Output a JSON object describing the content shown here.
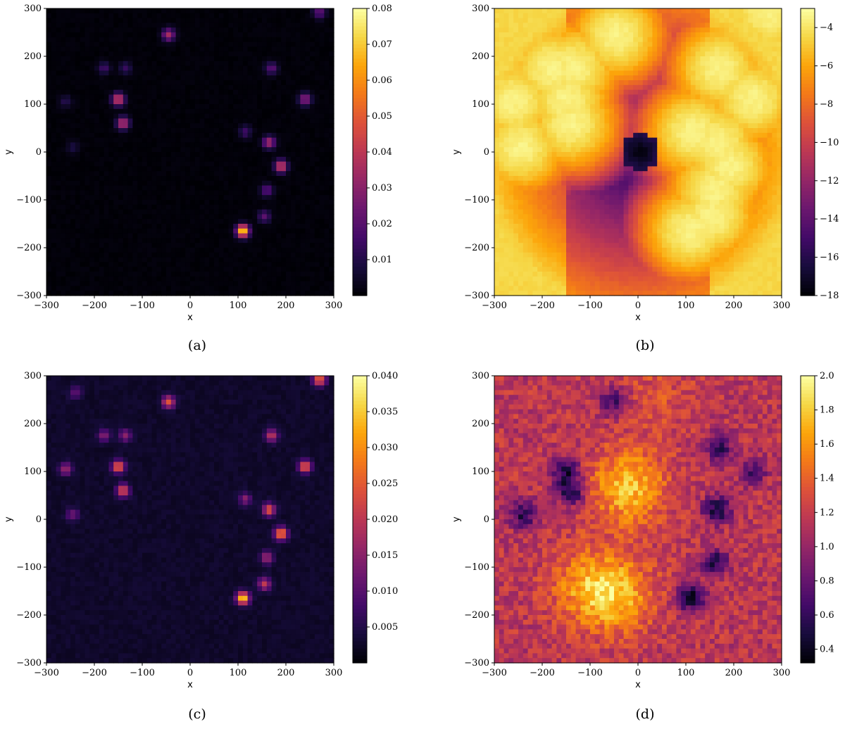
{
  "chart_data": [
    {
      "type": "heatmap",
      "panel_label": "(a)",
      "xlabel": "x",
      "ylabel": "y",
      "xlim": [
        -300,
        300
      ],
      "ylim": [
        -300,
        300
      ],
      "xticks": [
        "−300",
        "−200",
        "−100",
        "0",
        "100",
        "200",
        "300"
      ],
      "yticks": [
        "−300",
        "−200",
        "−100",
        "0",
        "100",
        "200",
        "300"
      ],
      "colormap": "inferno",
      "scale": "linear",
      "colorbar_range": [
        0,
        0.08
      ],
      "colorbar_ticks": [
        "0.01",
        "0.02",
        "0.03",
        "0.04",
        "0.05",
        "0.06",
        "0.07",
        "0.08"
      ],
      "colorbar_tick_values": [
        0.01,
        0.02,
        0.03,
        0.04,
        0.05,
        0.06,
        0.07,
        0.08
      ],
      "background_level": 0.0,
      "blobs": [
        {
          "x": -45,
          "y": 245,
          "peak": 0.035
        },
        {
          "x": -150,
          "y": 110,
          "peak": 0.045
        },
        {
          "x": -140,
          "y": 60,
          "peak": 0.04
        },
        {
          "x": -180,
          "y": 175,
          "peak": 0.015
        },
        {
          "x": -135,
          "y": 175,
          "peak": 0.013
        },
        {
          "x": -260,
          "y": 105,
          "peak": 0.01
        },
        {
          "x": -245,
          "y": 10,
          "peak": 0.008
        },
        {
          "x": 270,
          "y": 292,
          "peak": 0.022
        },
        {
          "x": 170,
          "y": 175,
          "peak": 0.02
        },
        {
          "x": 240,
          "y": 110,
          "peak": 0.03
        },
        {
          "x": 115,
          "y": 42,
          "peak": 0.015
        },
        {
          "x": 165,
          "y": 20,
          "peak": 0.035
        },
        {
          "x": 190,
          "y": -30,
          "peak": 0.045
        },
        {
          "x": 160,
          "y": -80,
          "peak": 0.02
        },
        {
          "x": 155,
          "y": -135,
          "peak": 0.02
        },
        {
          "x": 110,
          "y": -165,
          "peak": 0.075
        }
      ]
    },
    {
      "type": "heatmap",
      "panel_label": "(b)",
      "xlabel": "x",
      "ylabel": "y",
      "xlim": [
        -300,
        300
      ],
      "ylim": [
        -300,
        300
      ],
      "xticks": [
        "−300",
        "−200",
        "−100",
        "0",
        "100",
        "200",
        "300"
      ],
      "yticks": [
        "−300",
        "−200",
        "−100",
        "0",
        "100",
        "200",
        "300"
      ],
      "colormap": "inferno",
      "scale": "log",
      "colorbar_range": [
        -18,
        -3
      ],
      "colorbar_ticks": [
        "−18",
        "−16",
        "−14",
        "−12",
        "−10",
        "−8",
        "−6",
        "−4"
      ],
      "colorbar_tick_values": [
        -18,
        -16,
        -14,
        -12,
        -10,
        -8,
        -6,
        -4
      ],
      "minimum_location": {
        "x": 5,
        "y": 0,
        "value": -18
      },
      "corner_level": -7,
      "blob_peak_level": -3.5
    },
    {
      "type": "heatmap",
      "panel_label": "(c)",
      "xlabel": "x",
      "ylabel": "y",
      "xlim": [
        -300,
        300
      ],
      "ylim": [
        -300,
        300
      ],
      "xticks": [
        "−300",
        "−200",
        "−100",
        "0",
        "100",
        "200",
        "300"
      ],
      "yticks": [
        "−300",
        "−200",
        "−100",
        "0",
        "100",
        "200",
        "300"
      ],
      "colormap": "inferno",
      "scale": "linear",
      "colorbar_range": [
        0,
        0.04
      ],
      "colorbar_ticks": [
        "0.005",
        "0.010",
        "0.015",
        "0.020",
        "0.025",
        "0.030",
        "0.035",
        "0.040"
      ],
      "colorbar_tick_values": [
        0.005,
        0.01,
        0.015,
        0.02,
        0.025,
        0.03,
        0.035,
        0.04
      ],
      "background_level": 0.002,
      "blobs": [
        {
          "x": -45,
          "y": 245,
          "peak": 0.022
        },
        {
          "x": -150,
          "y": 110,
          "peak": 0.025
        },
        {
          "x": -140,
          "y": 60,
          "peak": 0.022
        },
        {
          "x": -180,
          "y": 175,
          "peak": 0.012
        },
        {
          "x": -135,
          "y": 175,
          "peak": 0.012
        },
        {
          "x": -260,
          "y": 105,
          "peak": 0.014
        },
        {
          "x": -245,
          "y": 10,
          "peak": 0.01
        },
        {
          "x": -240,
          "y": 265,
          "peak": 0.008
        },
        {
          "x": 270,
          "y": 292,
          "peak": 0.025
        },
        {
          "x": 170,
          "y": 175,
          "peak": 0.018
        },
        {
          "x": 240,
          "y": 110,
          "peak": 0.024
        },
        {
          "x": 115,
          "y": 42,
          "peak": 0.012
        },
        {
          "x": 165,
          "y": 20,
          "peak": 0.022
        },
        {
          "x": 190,
          "y": -30,
          "peak": 0.028
        },
        {
          "x": 160,
          "y": -80,
          "peak": 0.015
        },
        {
          "x": 155,
          "y": -135,
          "peak": 0.018
        },
        {
          "x": 110,
          "y": -165,
          "peak": 0.035
        }
      ]
    },
    {
      "type": "heatmap",
      "panel_label": "(d)",
      "xlabel": "x",
      "ylabel": "y",
      "xlim": [
        -300,
        300
      ],
      "ylim": [
        -300,
        300
      ],
      "xticks": [
        "−300",
        "−200",
        "−100",
        "0",
        "100",
        "200",
        "300"
      ],
      "yticks": [
        "−300",
        "−200",
        "−100",
        "0",
        "100",
        "200",
        "300"
      ],
      "colormap": "inferno",
      "scale": "linear",
      "colorbar_range": [
        0.32,
        2.0
      ],
      "colorbar_ticks": [
        "0.4",
        "0.6",
        "0.8",
        "1.0",
        "1.2",
        "1.4",
        "1.6",
        "1.8",
        "2.0"
      ],
      "colorbar_tick_values": [
        0.4,
        0.6,
        0.8,
        1.0,
        1.2,
        1.4,
        1.6,
        1.8,
        2.0
      ],
      "background_level": 1.15,
      "high_regions": [
        {
          "x": -20,
          "y": 65,
          "peak": 1.75
        },
        {
          "x": -100,
          "y": -140,
          "peak": 1.6
        },
        {
          "x": -40,
          "y": -160,
          "peak": 1.6
        },
        {
          "x": 40,
          "y": 260,
          "peak": 1.3
        }
      ],
      "low_regions": [
        {
          "x": -150,
          "y": 100,
          "peak": 0.5
        },
        {
          "x": -140,
          "y": 55,
          "peak": 0.5
        },
        {
          "x": -240,
          "y": 10,
          "peak": 0.55
        },
        {
          "x": -50,
          "y": 245,
          "peak": 0.6
        },
        {
          "x": 165,
          "y": 20,
          "peak": 0.45
        },
        {
          "x": 110,
          "y": -165,
          "peak": 0.4
        },
        {
          "x": 170,
          "y": 150,
          "peak": 0.6
        },
        {
          "x": 240,
          "y": 100,
          "peak": 0.7
        },
        {
          "x": 160,
          "y": -90,
          "peak": 0.55
        }
      ]
    }
  ]
}
